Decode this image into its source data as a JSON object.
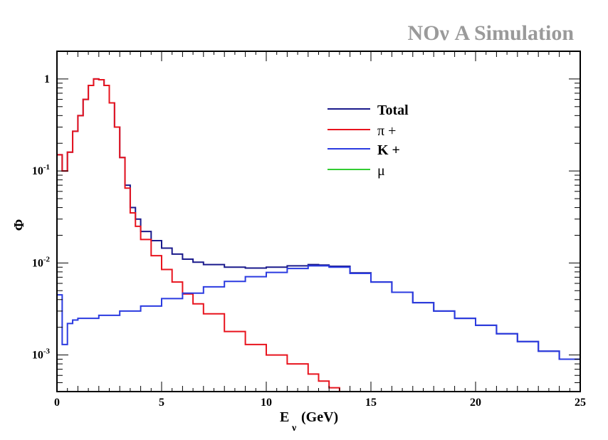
{
  "chart_data": {
    "type": "line",
    "title": "NOν A Simulation",
    "xlabel": "E",
    "xlabel_sub": "ν",
    "xlabel_unit": "(GeV)",
    "ylabel": "Φ",
    "xlim": [
      0,
      25
    ],
    "ylim": [
      0.0004,
      2
    ],
    "yscale": "log",
    "x_ticks": [
      0,
      5,
      10,
      15,
      20,
      25
    ],
    "y_ticks": [
      {
        "value": 1,
        "base": "1",
        "exp": ""
      },
      {
        "value": 0.1,
        "base": "10",
        "exp": "-1"
      },
      {
        "value": 0.01,
        "base": "10",
        "exp": "-2"
      },
      {
        "value": 0.001,
        "base": "10",
        "exp": "-3"
      }
    ],
    "legend_position": "top-right",
    "series": [
      {
        "name": "Total",
        "color": "#1a1a8c",
        "x": [
          0,
          0.25,
          0.5,
          0.75,
          1.0,
          1.25,
          1.5,
          1.75,
          2.0,
          2.25,
          2.5,
          2.75,
          3.0,
          3.25,
          3.5,
          3.75,
          4.0,
          4.5,
          5.0,
          5.5,
          6.0,
          6.5,
          7.0,
          8.0,
          9.0,
          10.0,
          11.0,
          12.0,
          12.5,
          13.0,
          14.0,
          15.0,
          16.0,
          17.0,
          18.0,
          19.0,
          20.0,
          21.0,
          22.0,
          23.0,
          24.0,
          25.0
        ],
        "values": [
          0.15,
          0.1,
          0.16,
          0.27,
          0.4,
          0.6,
          0.85,
          1.0,
          0.98,
          0.85,
          0.55,
          0.3,
          0.14,
          0.07,
          0.04,
          0.03,
          0.022,
          0.0175,
          0.0145,
          0.0125,
          0.011,
          0.0102,
          0.0096,
          0.009,
          0.0088,
          0.009,
          0.0093,
          0.0096,
          0.0095,
          0.0092,
          0.0078,
          0.0062,
          0.0048,
          0.0037,
          0.003,
          0.0025,
          0.0021,
          0.0017,
          0.0014,
          0.0011,
          0.0009,
          0.0007
        ]
      },
      {
        "name": "π +",
        "color": "#e8141e",
        "x": [
          0,
          0.25,
          0.5,
          0.75,
          1.0,
          1.25,
          1.5,
          1.75,
          2.0,
          2.25,
          2.5,
          2.75,
          3.0,
          3.25,
          3.5,
          3.75,
          4.0,
          4.5,
          5.0,
          5.5,
          6.0,
          6.5,
          7.0,
          8.0,
          9.0,
          10.0,
          11.0,
          12.0,
          12.5,
          13.0,
          13.5
        ],
        "values": [
          0.15,
          0.1,
          0.16,
          0.27,
          0.4,
          0.6,
          0.85,
          1.0,
          0.98,
          0.85,
          0.55,
          0.3,
          0.14,
          0.065,
          0.035,
          0.025,
          0.018,
          0.012,
          0.0085,
          0.0062,
          0.0046,
          0.0036,
          0.0028,
          0.0018,
          0.0013,
          0.001,
          0.0008,
          0.00062,
          0.00052,
          0.00044,
          0.0004
        ]
      },
      {
        "name": "K +",
        "color": "#2b3be0",
        "x": [
          0,
          0.25,
          0.5,
          0.75,
          1.0,
          2.0,
          3.0,
          4.0,
          5.0,
          6.0,
          7.0,
          8.0,
          9.0,
          10.0,
          11.0,
          12.0,
          12.5,
          13.0,
          14.0,
          15.0,
          16.0,
          17.0,
          18.0,
          19.0,
          20.0,
          21.0,
          22.0,
          23.0,
          24.0,
          25.0
        ],
        "values": [
          0.0045,
          0.0013,
          0.0022,
          0.0024,
          0.0025,
          0.0027,
          0.003,
          0.0034,
          0.0041,
          0.0047,
          0.0055,
          0.0063,
          0.0071,
          0.0079,
          0.0087,
          0.0093,
          0.0093,
          0.009,
          0.0077,
          0.0062,
          0.0048,
          0.0037,
          0.003,
          0.0025,
          0.0021,
          0.0017,
          0.0014,
          0.0011,
          0.0009,
          0.0007
        ]
      },
      {
        "name": "μ",
        "color": "#33cc33",
        "x": [
          0,
          25
        ],
        "values": [
          0.0004,
          0.0004
        ]
      }
    ]
  }
}
